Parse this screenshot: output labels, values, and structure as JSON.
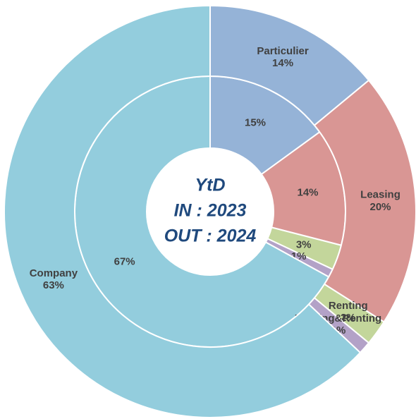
{
  "chart_data": {
    "type": "donut",
    "center_text": [
      "YtD",
      "IN : 2023",
      "OUT : 2024"
    ],
    "categories": [
      "Particulier",
      "Leasing",
      "Renting",
      "Leasing&Renting",
      "Company"
    ],
    "colors": [
      "#95b3d7",
      "#d99694",
      "#c3d69b",
      "#b3a2c7",
      "#93cddd"
    ],
    "rings": [
      {
        "values": [
          15,
          14,
          3,
          1,
          67
        ],
        "value_labels": [
          "15%",
          "14%",
          "3%",
          "1%",
          "67%"
        ]
      },
      {
        "values": [
          14,
          20,
          2,
          1,
          63
        ],
        "value_labels": [
          "14%",
          "20%",
          "2%",
          "1%",
          "63%"
        ]
      }
    ]
  }
}
